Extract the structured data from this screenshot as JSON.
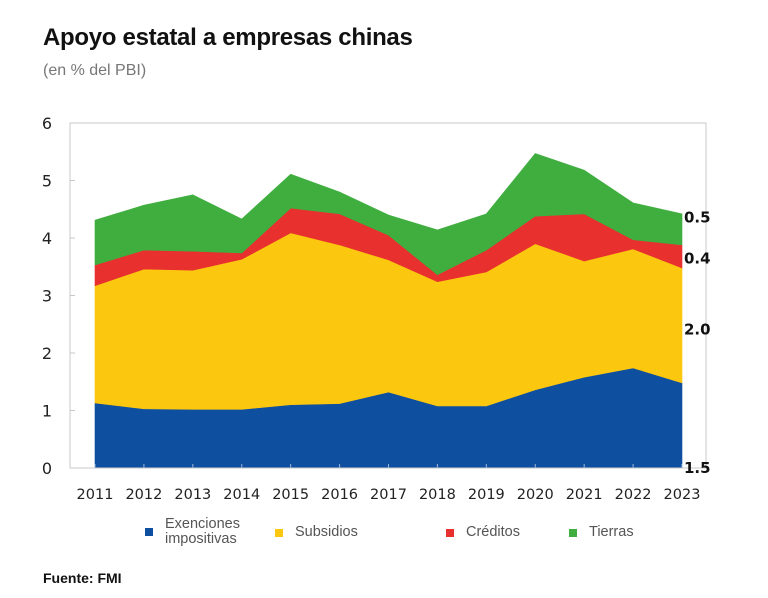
{
  "header": {
    "title": "Apoyo estatal a empresas chinas",
    "subtitle": "(en % del PBI)"
  },
  "source": "Fuente: FMI",
  "colors": {
    "exenciones": "#0E4FA0",
    "subsidios": "#FCC70F",
    "creditos": "#E8302F",
    "tierras": "#3FAE3F"
  },
  "chart_data": {
    "type": "area",
    "stacked": true,
    "title": "Apoyo estatal a empresas chinas",
    "subtitle": "(en % del PBI)",
    "xlabel": "",
    "ylabel": "",
    "x": [
      "2011",
      "2012",
      "2013",
      "2014",
      "2015",
      "2016",
      "2017",
      "2018",
      "2019",
      "2020",
      "2021",
      "2022",
      "2023"
    ],
    "ylim": [
      0,
      6
    ],
    "yticks": [
      0,
      1,
      2,
      3,
      4,
      5,
      6
    ],
    "ytick_labels": [
      "0",
      "1",
      "2",
      "3",
      "4",
      "5",
      "6"
    ],
    "grid": false,
    "legend_position": "bottom",
    "series": [
      {
        "name": "Exenciones impositivas",
        "legend_lines": [
          "Exenciones",
          "impositivas"
        ],
        "color": "#0E4FA0",
        "values": [
          1.13,
          1.03,
          1.02,
          1.02,
          1.1,
          1.12,
          1.32,
          1.08,
          1.08,
          1.36,
          1.58,
          1.74,
          1.48
        ]
      },
      {
        "name": "Subsidios",
        "legend_lines": [
          "Subsidios"
        ],
        "color": "#FCC70F",
        "values": [
          2.04,
          2.43,
          2.42,
          2.61,
          2.99,
          2.76,
          2.3,
          2.16,
          2.33,
          2.54,
          2.02,
          2.07,
          2.0
        ]
      },
      {
        "name": "Créditos",
        "legend_lines": [
          "Créditos"
        ],
        "color": "#E8302F",
        "values": [
          0.36,
          0.33,
          0.33,
          0.11,
          0.43,
          0.54,
          0.43,
          0.12,
          0.38,
          0.48,
          0.82,
          0.16,
          0.4
        ]
      },
      {
        "name": "Tierras",
        "legend_lines": [
          "Tierras"
        ],
        "color": "#3FAE3F",
        "values": [
          0.78,
          0.78,
          0.98,
          0.59,
          0.59,
          0.38,
          0.35,
          0.78,
          0.63,
          1.09,
          0.76,
          0.64,
          0.54
        ]
      }
    ],
    "annotations": [
      {
        "series": "Tierras",
        "x": "2023",
        "text": "0.5"
      },
      {
        "series": "Créditos",
        "x": "2023",
        "text": "0.4"
      },
      {
        "series": "Subsidios",
        "x": "2023",
        "text": "2.0"
      },
      {
        "series": "Exenciones impositivas",
        "x": "2023",
        "text": "1.5"
      }
    ]
  }
}
